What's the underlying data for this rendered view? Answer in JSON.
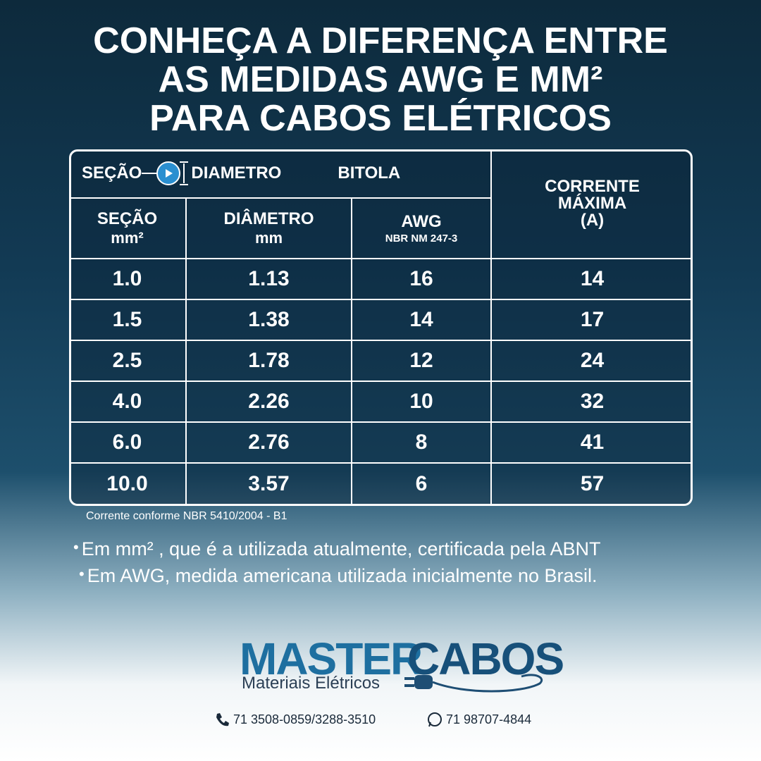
{
  "title": [
    "CONHEÇA A DIFERENÇA ENTRE",
    "AS MEDIDAS AWG E MM²",
    "PARA CABOS ELÉTRICOS"
  ],
  "table": {
    "group_headers": {
      "section": "SEÇÃO",
      "diameter": "DIAMETRO",
      "gauge": "BITOLA",
      "current": [
        "CORRENTE",
        "MÁXIMA",
        "(A)"
      ]
    },
    "columns": [
      [
        "SEÇÃO",
        "mm²"
      ],
      [
        "DIÂMETRO",
        "mm"
      ],
      [
        "AWG",
        "NBR NM 247-3"
      ]
    ],
    "rows": [
      [
        "1.0",
        "1.13",
        "16",
        "14"
      ],
      [
        "1.5",
        "1.38",
        "14",
        "17"
      ],
      [
        "2.5",
        "1.78",
        "12",
        "24"
      ],
      [
        "4.0",
        "2.26",
        "10",
        "32"
      ],
      [
        "6.0",
        "2.76",
        "8",
        "41"
      ],
      [
        "10.0",
        "3.57",
        "6",
        "57"
      ]
    ],
    "note": "Corrente conforme NBR 5410/2004 - B1"
  },
  "bullets": [
    "Em mm² , que é a utilizada atualmente, certificada pela ABNT",
    "Em AWG, medida americana utilizada inicialmente no Brasil."
  ],
  "brand": {
    "name_a": "MASTER",
    "name_b": "CABOS",
    "tagline": "Materiais Elétricos"
  },
  "contacts": {
    "phone": "71 3508-0859/3288-3510",
    "whatsapp": "71 98707-4844"
  }
}
